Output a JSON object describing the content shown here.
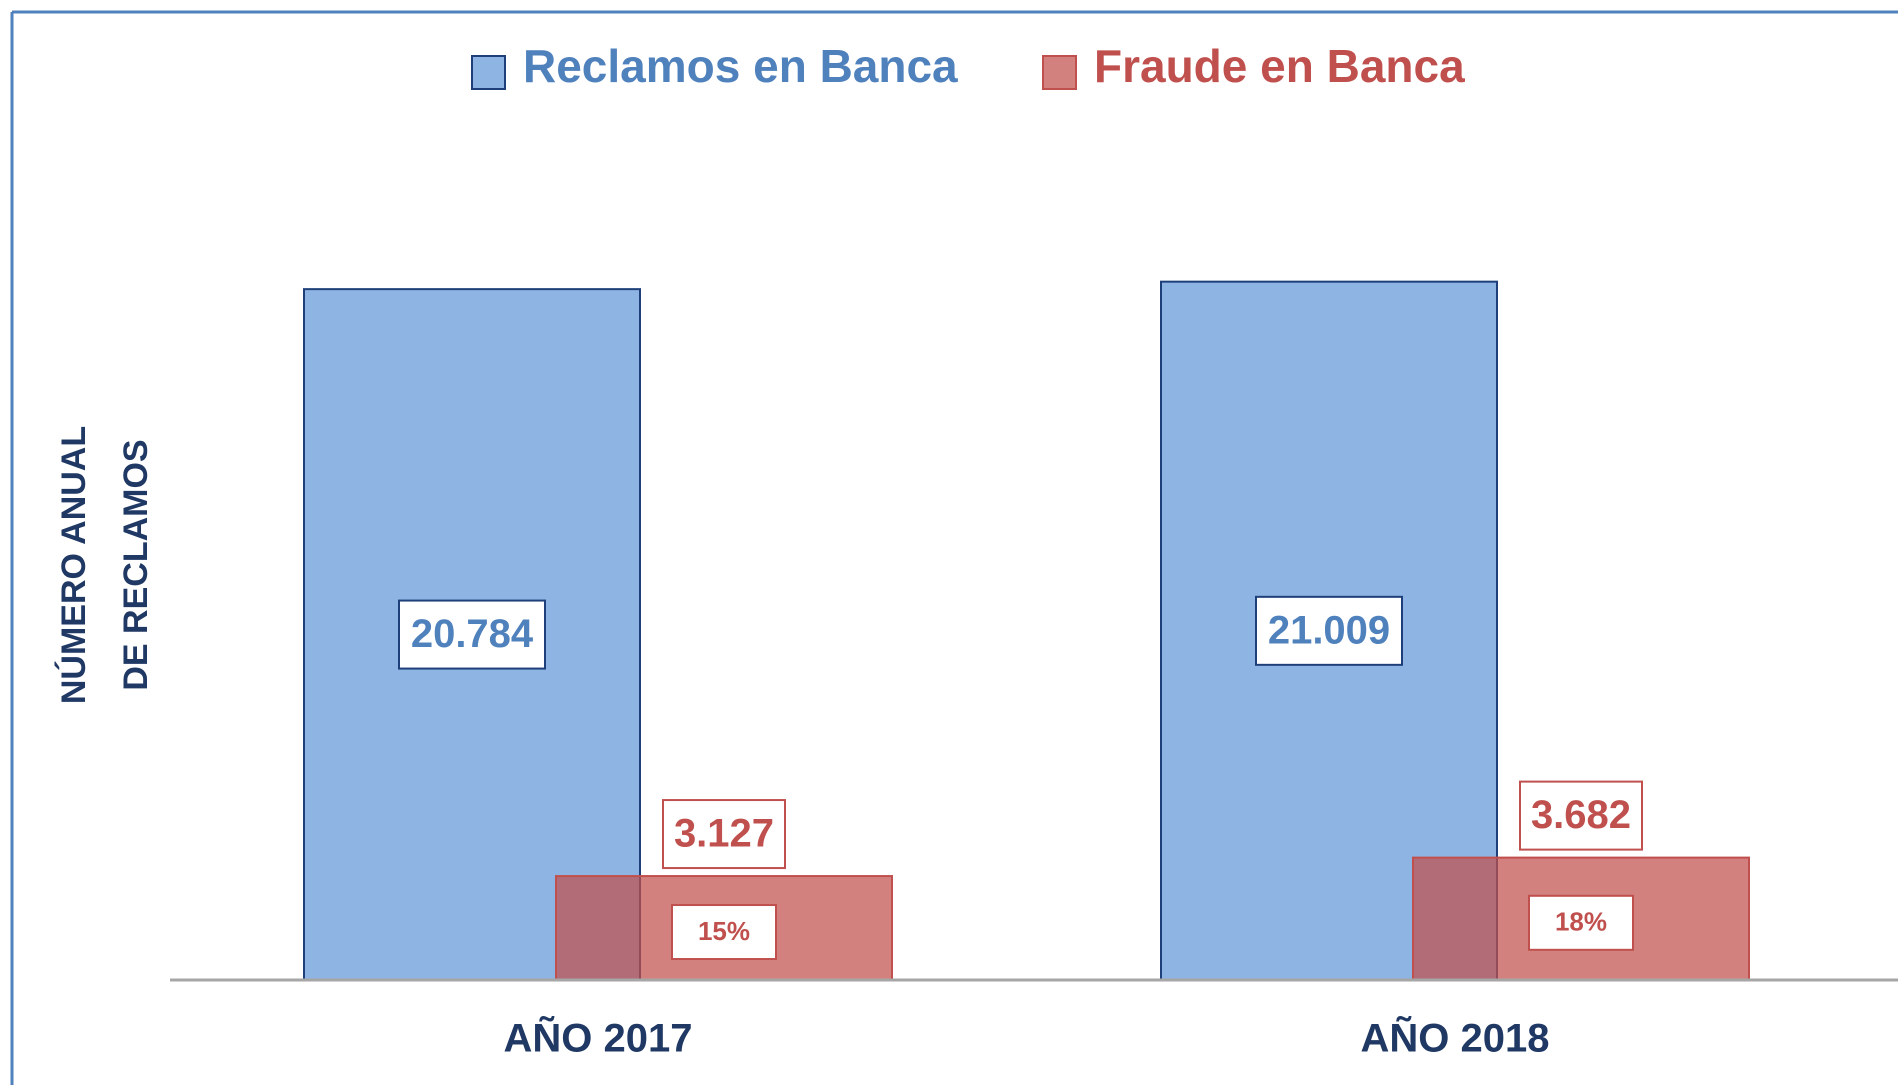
{
  "chart_data": {
    "type": "bar",
    "categories": [
      "AÑO 2017",
      "AÑO 2018"
    ],
    "series": [
      {
        "name": "Reclamos en Banca",
        "color": "#8eb4e3",
        "values": [
          20784,
          21009
        ],
        "value_labels": [
          "20.784",
          "21.009"
        ]
      },
      {
        "name": "Fraude en Banca",
        "color": "#c0504d",
        "values": [
          3127,
          3682
        ],
        "value_labels": [
          "3.127",
          "3.682"
        ],
        "share_labels": [
          "15%",
          "18%"
        ]
      }
    ],
    "ylabel": [
      "NÚMERO ANUAL",
      "DE RECLAMOS"
    ],
    "ylim": [
      0,
      25000
    ]
  }
}
